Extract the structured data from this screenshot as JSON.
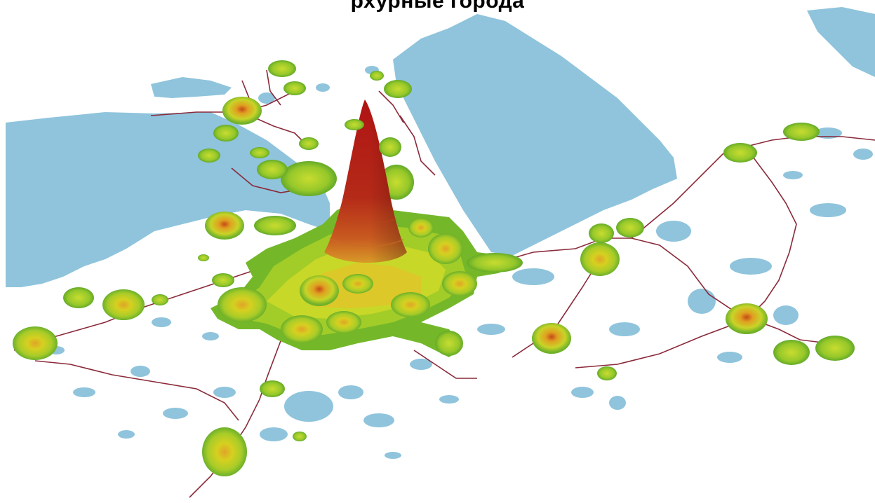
{
  "map": {
    "title": "рхурные города",
    "colors": {
      "water": "#8fc4dc",
      "land": "#ffffff",
      "rail": "#8a2a3a",
      "density_low": "#74b82a",
      "density_mid": "#c8dc28",
      "density_high": "#e8a020",
      "density_peak": "#b01818"
    }
  }
}
